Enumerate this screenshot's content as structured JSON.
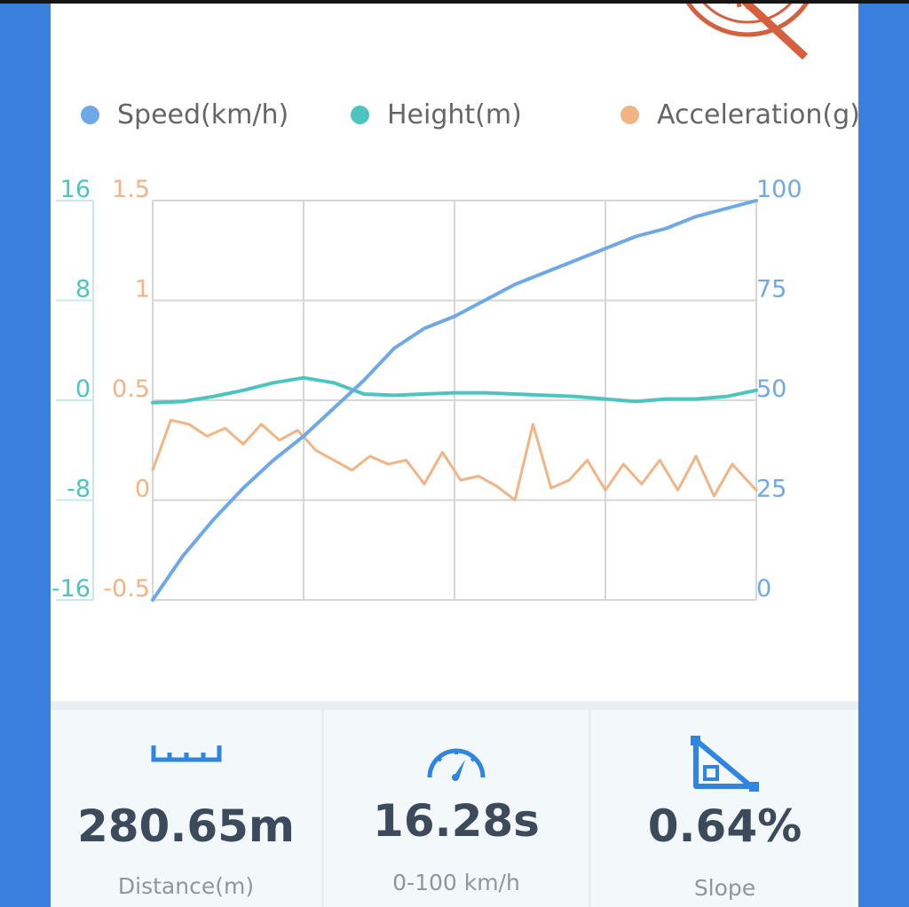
{
  "legend": [
    {
      "label": "Speed(km/h)",
      "color": "#6fa8e6"
    },
    {
      "label": "Height(m)",
      "color": "#4dc4bf"
    },
    {
      "label": "Acceleration(g)",
      "color": "#f0b485"
    }
  ],
  "chart_data": {
    "type": "line",
    "x_range": [
      0,
      1
    ],
    "axes": {
      "height_left": {
        "ticks": [
          "16",
          "8",
          "0",
          "-8",
          "-16"
        ],
        "range": [
          -16,
          16
        ],
        "color": "#4dc4bf"
      },
      "accel_left": {
        "ticks": [
          "1.5",
          "1",
          "0.5",
          "0",
          "-0.5"
        ],
        "range": [
          -0.5,
          1.5
        ],
        "color": "#f0b485"
      },
      "speed_right": {
        "ticks": [
          "100",
          "75",
          "50",
          "25",
          "0"
        ],
        "range": [
          0,
          100
        ],
        "color": "#6fa8e6"
      }
    },
    "grid": true,
    "series": [
      {
        "name": "Speed(km/h)",
        "axis": "speed_right",
        "color": "#6fa8e6",
        "x": [
          0,
          0.05,
          0.1,
          0.15,
          0.2,
          0.25,
          0.3,
          0.35,
          0.4,
          0.45,
          0.5,
          0.55,
          0.6,
          0.65,
          0.7,
          0.75,
          0.8,
          0.85,
          0.9,
          0.95,
          1
        ],
        "y": [
          0,
          11,
          20,
          28,
          35,
          41,
          48,
          55,
          63,
          68,
          71,
          75,
          79,
          82,
          85,
          88,
          91,
          93,
          96,
          98,
          100
        ]
      },
      {
        "name": "Height(m)",
        "axis": "height_left",
        "color": "#4dc4bf",
        "x": [
          0,
          0.05,
          0.1,
          0.15,
          0.2,
          0.25,
          0.3,
          0.35,
          0.4,
          0.45,
          0.5,
          0.55,
          0.6,
          0.65,
          0.7,
          0.75,
          0.8,
          0.85,
          0.9,
          0.95,
          1
        ],
        "y": [
          -0.2,
          -0.1,
          0.3,
          0.8,
          1.4,
          1.8,
          1.4,
          0.5,
          0.4,
          0.5,
          0.6,
          0.6,
          0.5,
          0.4,
          0.3,
          0.1,
          -0.1,
          0.1,
          0.1,
          0.3,
          0.8
        ]
      },
      {
        "name": "Acceleration(g)",
        "axis": "accel_left",
        "color": "#f0b485",
        "x": [
          0,
          0.03,
          0.06,
          0.09,
          0.12,
          0.15,
          0.18,
          0.21,
          0.24,
          0.27,
          0.3,
          0.33,
          0.36,
          0.39,
          0.42,
          0.45,
          0.48,
          0.51,
          0.54,
          0.57,
          0.6,
          0.63,
          0.66,
          0.69,
          0.72,
          0.75,
          0.78,
          0.81,
          0.84,
          0.87,
          0.9,
          0.93,
          0.96,
          1
        ],
        "y": [
          0.15,
          0.4,
          0.38,
          0.32,
          0.36,
          0.28,
          0.38,
          0.3,
          0.35,
          0.25,
          0.2,
          0.15,
          0.22,
          0.18,
          0.2,
          0.08,
          0.24,
          0.1,
          0.12,
          0.07,
          0.0,
          0.38,
          0.06,
          0.1,
          0.2,
          0.05,
          0.18,
          0.08,
          0.2,
          0.05,
          0.22,
          0.02,
          0.18,
          0.05
        ]
      }
    ]
  },
  "stats": [
    {
      "icon": "ruler-icon",
      "value": "280.65m",
      "label": "Distance(m)"
    },
    {
      "icon": "speedometer-icon",
      "value": "16.28s",
      "label": "0-100 km/h"
    },
    {
      "icon": "slope-icon",
      "value": "0.64%",
      "label": "Slope"
    }
  ]
}
